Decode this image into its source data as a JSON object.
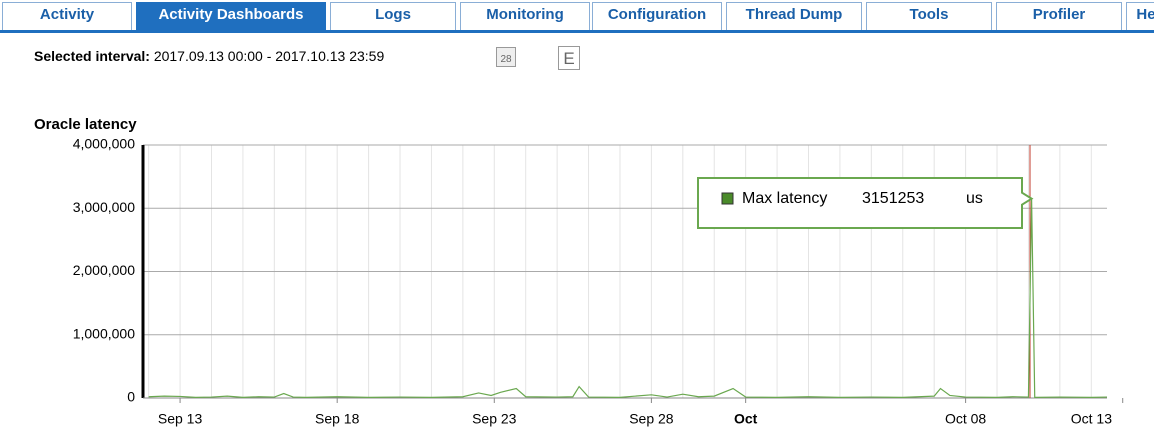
{
  "tabs": [
    "Activity",
    "Activity Dashboards",
    "Logs",
    "Monitoring",
    "Configuration",
    "Thread Dump",
    "Tools",
    "Profiler",
    "He"
  ],
  "active_tab": 1,
  "interval": {
    "label": "Selected interval:",
    "value": "2017.09.13 00:00 - 2017.10.13 23:59",
    "calendar_day": "28",
    "button": "E"
  },
  "chart_data": {
    "type": "line",
    "title": "Oracle latency",
    "x": [
      -1,
      -0.5,
      0,
      0.5,
      1,
      1.5,
      2,
      2.5,
      3,
      3.3,
      3.6,
      4,
      5,
      6,
      7,
      8,
      9,
      9.5,
      9.9,
      10.2,
      10.7,
      11,
      12,
      12.5,
      12.7,
      13,
      14,
      15,
      15.5,
      16,
      16.5,
      17,
      17.6,
      18,
      19,
      20,
      21,
      22,
      23,
      24,
      24.2,
      24.5,
      25,
      26,
      26.5,
      27,
      27.1,
      27.2,
      28,
      29,
      29.5
    ],
    "series": [
      {
        "name": "Max latency",
        "color": "#6aa84f",
        "values": [
          20000,
          30000,
          25000,
          10000,
          15000,
          30000,
          10000,
          20000,
          15000,
          70000,
          15000,
          10000,
          20000,
          10000,
          15000,
          10000,
          20000,
          80000,
          40000,
          90000,
          150000,
          20000,
          15000,
          20000,
          180000,
          15000,
          10000,
          50000,
          15000,
          60000,
          20000,
          30000,
          150000,
          15000,
          10000,
          20000,
          10000,
          15000,
          10000,
          30000,
          150000,
          40000,
          15000,
          10000,
          20000,
          15000,
          3151253,
          10000,
          15000,
          10000,
          15000
        ]
      }
    ],
    "tooltip_unit": "us",
    "xlim": [
      -1.18,
      29.5
    ],
    "xticks": [
      {
        "value": 0,
        "label": "Sep 13"
      },
      {
        "value": 5,
        "label": "Sep 18"
      },
      {
        "value": 10,
        "label": "Sep 23"
      },
      {
        "value": 15,
        "label": "Sep 28"
      },
      {
        "value": 18,
        "label": "Oct"
      },
      {
        "value": 25,
        "label": "Oct 08"
      },
      {
        "value": 30,
        "label": "Oct 13"
      }
    ],
    "ylim": [
      0,
      4000000
    ],
    "yticks": [
      0,
      {
        "value": 1000000,
        "label": "1,000,000"
      },
      {
        "value": 2000000,
        "label": "2,000,000"
      },
      {
        "value": 3000000,
        "label": "3,000,000"
      },
      {
        "value": 4000000,
        "label": "4,000,000"
      }
    ],
    "grid": true
  }
}
